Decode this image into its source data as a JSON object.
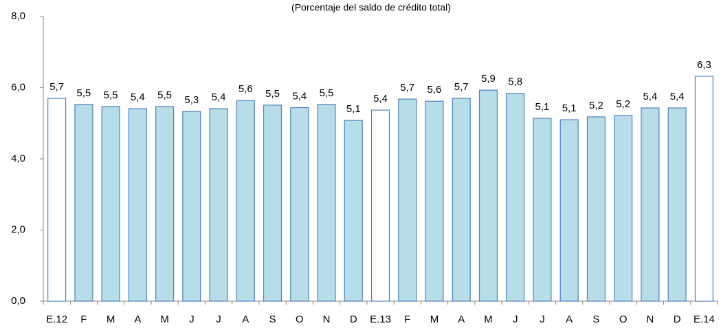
{
  "chart_data": {
    "type": "bar",
    "title": "(Porcentaje del saldo de crédito total)",
    "categories": [
      "E.12",
      "F",
      "M",
      "A",
      "M",
      "J",
      "J",
      "A",
      "S",
      "O",
      "N",
      "D",
      "E.13",
      "F",
      "M",
      "A",
      "M",
      "J",
      "J",
      "A",
      "S",
      "O",
      "N",
      "D",
      "E.14"
    ],
    "values": [
      5.7,
      5.53,
      5.47,
      5.41,
      5.47,
      5.33,
      5.41,
      5.64,
      5.51,
      5.44,
      5.53,
      5.08,
      5.37,
      5.68,
      5.62,
      5.7,
      5.93,
      5.84,
      5.14,
      5.1,
      5.18,
      5.22,
      5.43,
      5.43,
      6.32
    ],
    "value_labels": [
      "5,7",
      "5,5",
      "5,5",
      "5,4",
      "5,5",
      "5,3",
      "5,4",
      "5,6",
      "5,5",
      "5,4",
      "5,5",
      "5,1",
      "5,4",
      "5,7",
      "5,6",
      "5,7",
      "5,9",
      "5,8",
      "5,1",
      "5,1",
      "5,2",
      "5,2",
      "5,4",
      "5,4",
      "6,3"
    ],
    "colors": [
      "#ffffff",
      "#b7dde8",
      "#b7dde8",
      "#b7dde8",
      "#b7dde8",
      "#b7dde8",
      "#b7dde8",
      "#b7dde8",
      "#b7dde8",
      "#b7dde8",
      "#b7dde8",
      "#b7dde8",
      "#ffffff",
      "#b7dde8",
      "#b7dde8",
      "#b7dde8",
      "#b7dde8",
      "#b7dde8",
      "#b7dde8",
      "#b7dde8",
      "#b7dde8",
      "#b7dde8",
      "#b7dde8",
      "#b7dde8",
      "#ffffff"
    ],
    "edgecolor": "#4f81bd",
    "ylim": [
      0,
      8
    ],
    "yticks": [
      {
        "value": 0,
        "label": "0,0"
      },
      {
        "value": 2,
        "label": "2,0"
      },
      {
        "value": 4,
        "label": "4,0"
      },
      {
        "value": 6,
        "label": "6,0"
      },
      {
        "value": 8,
        "label": "8,0"
      }
    ],
    "grid": false
  }
}
